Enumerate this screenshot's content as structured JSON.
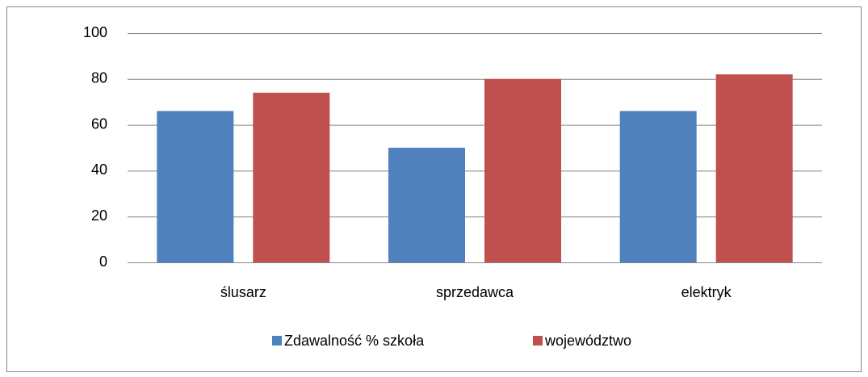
{
  "chart_data": {
    "type": "bar",
    "categories": [
      "ślusarz",
      "sprzedawca",
      "elektryk"
    ],
    "series": [
      {
        "name": "Zdawalność % szkoła",
        "color": "#4f81bd",
        "values": [
          66,
          50,
          66
        ]
      },
      {
        "name": "województwo",
        "color": "#c0504d",
        "values": [
          74,
          80,
          82
        ]
      }
    ],
    "ylim": [
      0,
      100
    ],
    "yticks": [
      0,
      20,
      40,
      60,
      80,
      100
    ],
    "grid": true,
    "legend": "bottom"
  }
}
